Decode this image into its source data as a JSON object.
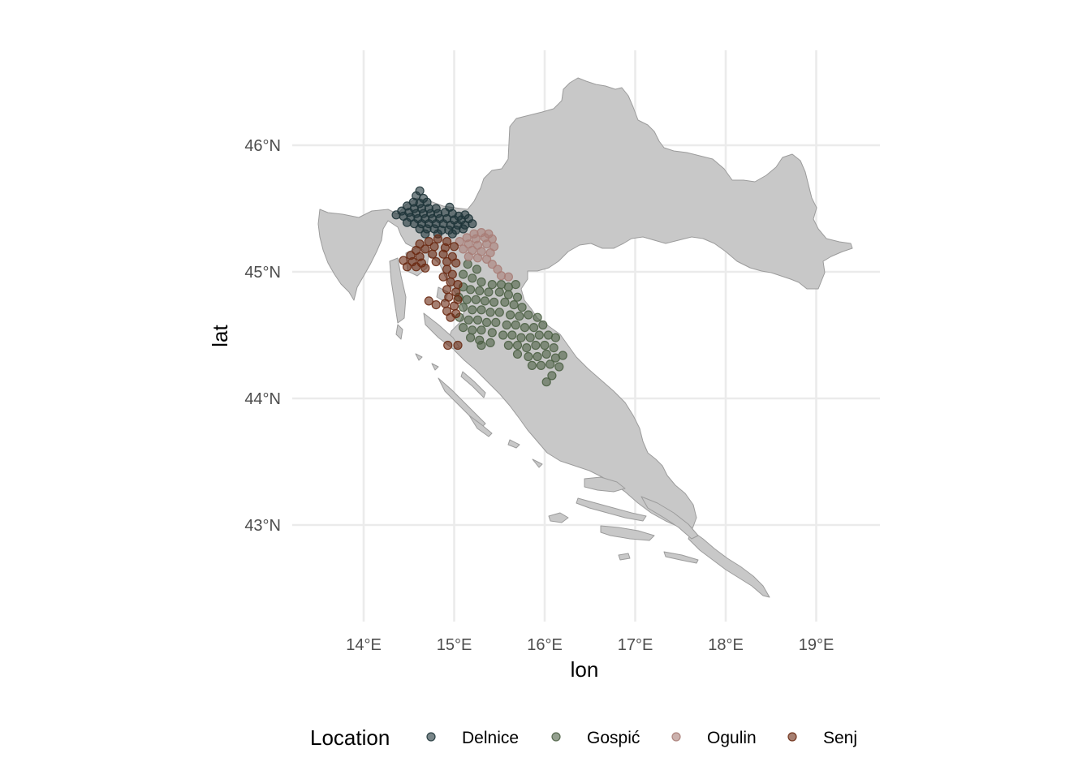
{
  "chart_data": {
    "type": "scatter",
    "title": "",
    "xlabel": "lon",
    "ylabel": "lat",
    "xlim": [
      13.3,
      19.7
    ],
    "ylim": [
      42.25,
      46.75
    ],
    "x_ticks": [
      {
        "value": 14,
        "label": "14°E"
      },
      {
        "value": 15,
        "label": "15°E"
      },
      {
        "value": 16,
        "label": "16°E"
      },
      {
        "value": 17,
        "label": "17°E"
      },
      {
        "value": 18,
        "label": "18°E"
      },
      {
        "value": 19,
        "label": "19°E"
      }
    ],
    "y_ticks": [
      {
        "value": 43,
        "label": "43°N"
      },
      {
        "value": 44,
        "label": "44°N"
      },
      {
        "value": 45,
        "label": "45°N"
      },
      {
        "value": 46,
        "label": "46°N"
      }
    ],
    "grid": true,
    "legend": {
      "title": "Location",
      "position": "bottom"
    },
    "base_map_fill": "#c8c8c8",
    "base_map_outline": "#9c9c9c",
    "point_alpha": 0.6,
    "series": [
      {
        "name": "Delnice",
        "color": "#1f353a",
        "points": [
          [
            14.62,
            45.64
          ],
          [
            14.58,
            45.6
          ],
          [
            14.66,
            45.58
          ],
          [
            14.55,
            45.55
          ],
          [
            14.7,
            45.55
          ],
          [
            14.62,
            45.54
          ],
          [
            14.48,
            45.52
          ],
          [
            14.56,
            45.5
          ],
          [
            14.64,
            45.5
          ],
          [
            14.72,
            45.5
          ],
          [
            14.8,
            45.5
          ],
          [
            14.95,
            45.51
          ],
          [
            14.42,
            45.48
          ],
          [
            14.5,
            45.47
          ],
          [
            14.58,
            45.46
          ],
          [
            14.66,
            45.46
          ],
          [
            14.74,
            45.46
          ],
          [
            14.82,
            45.46
          ],
          [
            14.9,
            45.47
          ],
          [
            14.98,
            45.46
          ],
          [
            15.05,
            45.44
          ],
          [
            15.12,
            45.45
          ],
          [
            14.36,
            45.45
          ],
          [
            14.44,
            45.44
          ],
          [
            14.52,
            45.43
          ],
          [
            14.6,
            45.42
          ],
          [
            14.68,
            45.42
          ],
          [
            14.76,
            45.42
          ],
          [
            14.84,
            45.42
          ],
          [
            14.92,
            45.42
          ],
          [
            15.0,
            45.41
          ],
          [
            15.08,
            45.41
          ],
          [
            15.16,
            45.42
          ],
          [
            15.2,
            45.38
          ],
          [
            14.48,
            45.39
          ],
          [
            14.56,
            45.38
          ],
          [
            14.64,
            45.38
          ],
          [
            14.72,
            45.38
          ],
          [
            14.8,
            45.38
          ],
          [
            14.88,
            45.38
          ],
          [
            14.96,
            45.37
          ],
          [
            15.04,
            45.37
          ],
          [
            15.12,
            45.37
          ],
          [
            14.62,
            45.34
          ],
          [
            14.7,
            45.34
          ],
          [
            14.78,
            45.34
          ],
          [
            14.86,
            45.33
          ],
          [
            14.94,
            45.33
          ],
          [
            15.02,
            45.33
          ],
          [
            15.1,
            45.34
          ],
          [
            14.68,
            45.3
          ],
          [
            14.82,
            45.3
          ],
          [
            14.98,
            45.3
          ]
        ]
      },
      {
        "name": "Gospić",
        "color": "#4d6045",
        "points": [
          [
            15.15,
            45.06
          ],
          [
            15.25,
            45.02
          ],
          [
            15.1,
            44.98
          ],
          [
            15.2,
            44.95
          ],
          [
            15.3,
            44.92
          ],
          [
            15.42,
            44.9
          ],
          [
            15.52,
            44.9
          ],
          [
            15.6,
            44.88
          ],
          [
            15.68,
            44.9
          ],
          [
            15.1,
            44.88
          ],
          [
            15.18,
            44.86
          ],
          [
            15.28,
            44.85
          ],
          [
            15.38,
            44.84
          ],
          [
            15.5,
            44.84
          ],
          [
            15.6,
            44.82
          ],
          [
            15.7,
            44.8
          ],
          [
            15.05,
            44.8
          ],
          [
            15.14,
            44.78
          ],
          [
            15.24,
            44.78
          ],
          [
            15.34,
            44.77
          ],
          [
            15.44,
            44.76
          ],
          [
            15.56,
            44.76
          ],
          [
            15.66,
            44.74
          ],
          [
            15.75,
            44.72
          ],
          [
            15.1,
            44.72
          ],
          [
            15.2,
            44.7
          ],
          [
            15.3,
            44.7
          ],
          [
            15.4,
            44.68
          ],
          [
            15.5,
            44.68
          ],
          [
            15.62,
            44.66
          ],
          [
            15.72,
            44.65
          ],
          [
            15.82,
            44.66
          ],
          [
            15.92,
            44.64
          ],
          [
            15.06,
            44.64
          ],
          [
            15.16,
            44.62
          ],
          [
            15.26,
            44.62
          ],
          [
            15.36,
            44.6
          ],
          [
            15.46,
            44.6
          ],
          [
            15.58,
            44.58
          ],
          [
            15.68,
            44.58
          ],
          [
            15.78,
            44.56
          ],
          [
            15.88,
            44.56
          ],
          [
            15.98,
            44.58
          ],
          [
            15.1,
            44.56
          ],
          [
            15.2,
            44.54
          ],
          [
            15.3,
            44.54
          ],
          [
            15.42,
            44.52
          ],
          [
            15.54,
            44.5
          ],
          [
            15.64,
            44.5
          ],
          [
            15.74,
            44.48
          ],
          [
            15.84,
            44.48
          ],
          [
            15.94,
            44.5
          ],
          [
            16.04,
            44.5
          ],
          [
            16.12,
            44.48
          ],
          [
            15.18,
            44.48
          ],
          [
            15.28,
            44.46
          ],
          [
            15.4,
            44.44
          ],
          [
            15.6,
            44.42
          ],
          [
            15.7,
            44.42
          ],
          [
            15.8,
            44.4
          ],
          [
            15.9,
            44.42
          ],
          [
            16.0,
            44.42
          ],
          [
            16.1,
            44.4
          ],
          [
            15.3,
            44.42
          ],
          [
            15.7,
            44.35
          ],
          [
            15.82,
            44.33
          ],
          [
            15.92,
            44.33
          ],
          [
            16.02,
            44.35
          ],
          [
            16.12,
            44.32
          ],
          [
            16.2,
            44.34
          ],
          [
            15.86,
            44.26
          ],
          [
            15.96,
            44.26
          ],
          [
            16.06,
            44.27
          ],
          [
            16.16,
            44.25
          ],
          [
            16.08,
            44.18
          ],
          [
            16.02,
            44.13
          ]
        ]
      },
      {
        "name": "Ogulin",
        "color": "#a97d77",
        "points": [
          [
            15.22,
            45.3
          ],
          [
            15.3,
            45.31
          ],
          [
            15.38,
            45.3
          ],
          [
            15.14,
            45.27
          ],
          [
            15.24,
            45.26
          ],
          [
            15.34,
            45.27
          ],
          [
            15.42,
            45.26
          ],
          [
            15.06,
            45.24
          ],
          [
            15.16,
            45.22
          ],
          [
            15.26,
            45.21
          ],
          [
            15.36,
            45.22
          ],
          [
            15.44,
            45.2
          ],
          [
            15.1,
            45.18
          ],
          [
            15.2,
            45.17
          ],
          [
            15.3,
            45.16
          ],
          [
            15.4,
            45.15
          ],
          [
            15.16,
            45.12
          ],
          [
            15.26,
            45.11
          ],
          [
            15.36,
            45.1
          ],
          [
            15.42,
            45.06
          ],
          [
            15.48,
            45.02
          ],
          [
            15.52,
            44.97
          ],
          [
            15.6,
            44.96
          ]
        ]
      },
      {
        "name": "Senj",
        "color": "#6a2a13",
        "points": [
          [
            14.62,
            45.22
          ],
          [
            14.72,
            45.24
          ],
          [
            14.82,
            45.26
          ],
          [
            14.92,
            45.24
          ],
          [
            14.58,
            45.17
          ],
          [
            14.68,
            45.18
          ],
          [
            14.78,
            45.2
          ],
          [
            14.9,
            45.19
          ],
          [
            15.0,
            45.2
          ],
          [
            14.52,
            45.13
          ],
          [
            14.62,
            45.12
          ],
          [
            14.76,
            45.14
          ],
          [
            14.88,
            45.14
          ],
          [
            14.98,
            45.12
          ],
          [
            14.44,
            45.09
          ],
          [
            14.54,
            45.08
          ],
          [
            14.64,
            45.07
          ],
          [
            14.8,
            45.08
          ],
          [
            14.92,
            45.08
          ],
          [
            15.02,
            45.07
          ],
          [
            14.48,
            45.04
          ],
          [
            14.58,
            45.04
          ],
          [
            14.68,
            45.03
          ],
          [
            14.92,
            45.02
          ],
          [
            14.98,
            44.98
          ],
          [
            14.88,
            44.96
          ],
          [
            14.96,
            44.92
          ],
          [
            15.04,
            44.9
          ],
          [
            14.92,
            44.86
          ],
          [
            15.02,
            44.84
          ],
          [
            14.94,
            44.8
          ],
          [
            15.04,
            44.78
          ],
          [
            14.9,
            44.75
          ],
          [
            15.0,
            44.73
          ],
          [
            14.92,
            44.69
          ],
          [
            15.02,
            44.67
          ],
          [
            14.96,
            44.64
          ],
          [
            14.72,
            44.77
          ],
          [
            14.8,
            44.74
          ],
          [
            14.93,
            44.42
          ],
          [
            15.04,
            44.42
          ]
        ]
      }
    ]
  }
}
